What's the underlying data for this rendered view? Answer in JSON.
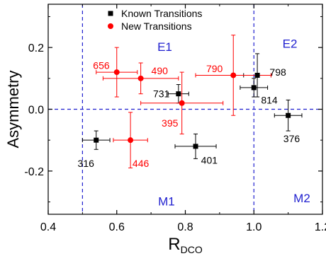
{
  "chart_data": {
    "type": "scatter",
    "xlabel": "R",
    "xlabel_sub": "DCO",
    "ylabel": "Asymmetry",
    "xlim": [
      0.4,
      1.2
    ],
    "ylim": [
      -0.34,
      0.34
    ],
    "xticks": [
      0.4,
      0.6,
      0.8,
      1.0,
      1.2
    ],
    "xtick_labels": [
      "0.4",
      "0.6",
      "0.8",
      "1.0",
      "1.2"
    ],
    "yticks": [
      -0.2,
      0.0,
      0.2
    ],
    "ytick_labels": [
      "-0.2",
      "0.0",
      "0.2"
    ],
    "grid": false,
    "legend_position": "top-center",
    "reference_lines": {
      "vertical_x": [
        0.5,
        1.0
      ],
      "horizontal_y": [
        0.0
      ],
      "color": "#1f1fcf"
    },
    "regions": [
      {
        "label": "E1",
        "x": 0.74,
        "y": 0.205
      },
      {
        "label": "E2",
        "x": 1.105,
        "y": 0.215
      },
      {
        "label": "M1",
        "x": 0.745,
        "y": -0.295
      },
      {
        "label": "M2",
        "x": 1.14,
        "y": -0.285
      }
    ],
    "series": [
      {
        "name": "Known Transitions",
        "color": "#000000",
        "marker": "square",
        "points": [
          {
            "label": "316",
            "x": 0.54,
            "y": -0.1,
            "xerr": 0.04,
            "yerr": 0.03,
            "label_dx": -0.03,
            "label_dy": -0.075
          },
          {
            "label": "401",
            "x": 0.83,
            "y": -0.12,
            "xerr": 0.06,
            "yerr": 0.04,
            "label_dx": 0.04,
            "label_dy": -0.045
          },
          {
            "label": "731",
            "x": 0.78,
            "y": 0.05,
            "xerr": 0.03,
            "yerr": 0.03,
            "label_dx": -0.05,
            "label_dy": 0.0
          },
          {
            "label": "798",
            "x": 1.01,
            "y": 0.11,
            "xerr": 0.04,
            "yerr": 0.07,
            "label_dx": 0.06,
            "label_dy": 0.01
          },
          {
            "label": "814",
            "x": 1.0,
            "y": 0.07,
            "xerr": 0.04,
            "yerr": 0.03,
            "label_dx": 0.045,
            "label_dy": -0.04
          },
          {
            "label": "376",
            "x": 1.1,
            "y": -0.02,
            "xerr": 0.04,
            "yerr": 0.05,
            "label_dx": 0.01,
            "label_dy": -0.075
          }
        ]
      },
      {
        "name": "New Transitions",
        "color": "#ff0000",
        "marker": "circle",
        "points": [
          {
            "label": "656",
            "x": 0.6,
            "y": 0.12,
            "xerr": 0.06,
            "yerr": 0.08,
            "label_dx": -0.045,
            "label_dy": 0.022
          },
          {
            "label": "490",
            "x": 0.67,
            "y": 0.1,
            "xerr": 0.11,
            "yerr": 0.05,
            "label_dx": 0.055,
            "label_dy": 0.025
          },
          {
            "label": "446",
            "x": 0.64,
            "y": -0.1,
            "xerr": 0.05,
            "yerr": 0.09,
            "label_dx": 0.03,
            "label_dy": -0.075
          },
          {
            "label": "395",
            "x": 0.79,
            "y": 0.02,
            "xerr": 0.12,
            "yerr": 0.1,
            "label_dx": -0.035,
            "label_dy": -0.065
          },
          {
            "label": "790",
            "x": 0.94,
            "y": 0.11,
            "xerr": 0.11,
            "yerr": 0.13,
            "label_dx": -0.055,
            "label_dy": 0.022
          }
        ]
      }
    ]
  }
}
